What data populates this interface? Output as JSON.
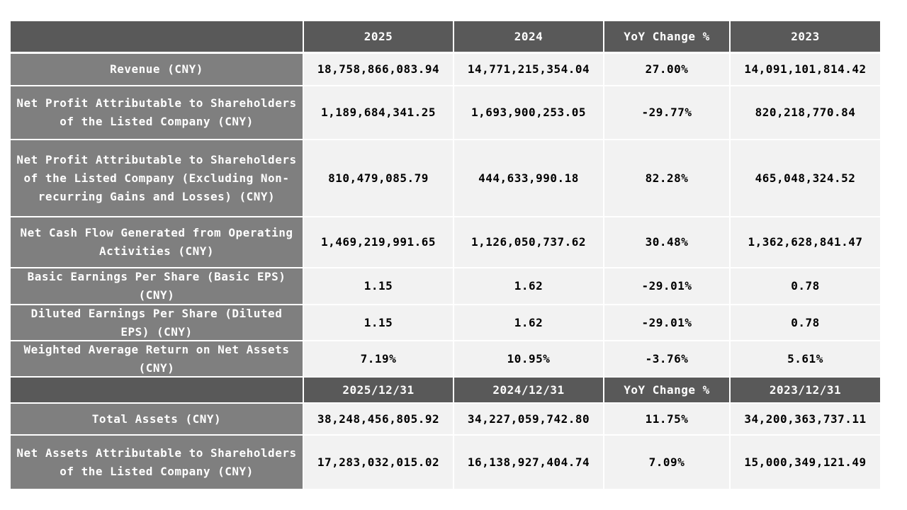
{
  "table": {
    "sections": [
      {
        "header": [
          "2025",
          "2024",
          "YoY Change %",
          "2023"
        ],
        "rows": [
          {
            "label": "Revenue (CNY)",
            "cells": [
              "18,758,866,083.94",
              "14,771,215,354.04",
              "27.00%",
              "14,091,101,814.42"
            ]
          },
          {
            "label": "Net Profit Attributable to Shareholders of the Listed Company (CNY)",
            "cells": [
              "1,189,684,341.25",
              "1,693,900,253.05",
              "-29.77%",
              "820,218,770.84"
            ]
          },
          {
            "label": "Net Profit Attributable to Shareholders of the Listed Company (Excluding Non-recurring Gains and Losses) (CNY)",
            "cells": [
              "810,479,085.79",
              "444,633,990.18",
              "82.28%",
              "465,048,324.52"
            ]
          },
          {
            "label": "Net Cash Flow Generated from Operating Activities (CNY)",
            "cells": [
              "1,469,219,991.65",
              "1,126,050,737.62",
              "30.48%",
              "1,362,628,841.47"
            ]
          },
          {
            "label": "Basic Earnings Per Share (Basic EPS) (CNY)",
            "cells": [
              "1.15",
              "1.62",
              "-29.01%",
              "0.78"
            ]
          },
          {
            "label": "Diluted Earnings Per Share (Diluted EPS) (CNY)",
            "cells": [
              "1.15",
              "1.62",
              "-29.01%",
              "0.78"
            ]
          },
          {
            "label": "Weighted Average Return on Net Assets (CNY)",
            "cells": [
              "7.19%",
              "10.95%",
              "-3.76%",
              "5.61%"
            ]
          }
        ]
      },
      {
        "header": [
          "2025/12/31",
          "2024/12/31",
          "YoY Change %",
          "2023/12/31"
        ],
        "rows": [
          {
            "label": "Total Assets (CNY)",
            "cells": [
              "38,248,456,805.92",
              "34,227,059,742.80",
              "11.75%",
              "34,200,363,737.11"
            ]
          },
          {
            "label": "Net Assets Attributable to Shareholders of the Listed Company (CNY)",
            "cells": [
              "17,283,032,015.02",
              "16,138,927,404.74",
              "7.09%",
              "15,000,349,121.49"
            ]
          }
        ]
      }
    ]
  }
}
